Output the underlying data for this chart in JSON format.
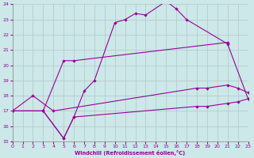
{
  "xlabel": "Windchill (Refroidissement éolien,°C)",
  "xlim": [
    0,
    23
  ],
  "ylim": [
    15,
    24
  ],
  "yticks": [
    15,
    16,
    17,
    18,
    19,
    20,
    21,
    22,
    23,
    24
  ],
  "xticks": [
    0,
    1,
    2,
    3,
    4,
    5,
    6,
    7,
    8,
    9,
    10,
    11,
    12,
    13,
    14,
    15,
    16,
    17,
    18,
    19,
    20,
    21,
    22,
    23
  ],
  "bg": "#cce8e8",
  "grid_color": "#b0c8c8",
  "lc": "#990099",
  "line1_x": [
    0,
    3,
    5,
    6,
    7,
    8,
    10,
    11,
    12,
    13,
    15,
    16,
    17,
    21,
    23
  ],
  "line1_y": [
    17.0,
    17.0,
    15.2,
    16.6,
    18.3,
    19.0,
    22.8,
    23.0,
    23.4,
    23.3,
    24.2,
    23.7,
    23.0,
    21.4,
    17.8
  ],
  "line2_x": [
    0,
    3,
    5,
    6,
    21
  ],
  "line2_y": [
    17.0,
    17.0,
    20.3,
    20.3,
    21.5
  ],
  "line3_x": [
    0,
    2,
    4,
    18,
    19,
    21,
    22,
    23
  ],
  "line3_y": [
    17.0,
    18.0,
    17.0,
    18.5,
    18.5,
    18.7,
    18.5,
    18.2
  ],
  "line4_x": [
    0,
    3,
    5,
    6,
    18,
    19,
    21,
    22,
    23
  ],
  "line4_y": [
    17.0,
    17.0,
    15.2,
    16.6,
    17.3,
    17.3,
    17.5,
    17.6,
    17.8
  ]
}
